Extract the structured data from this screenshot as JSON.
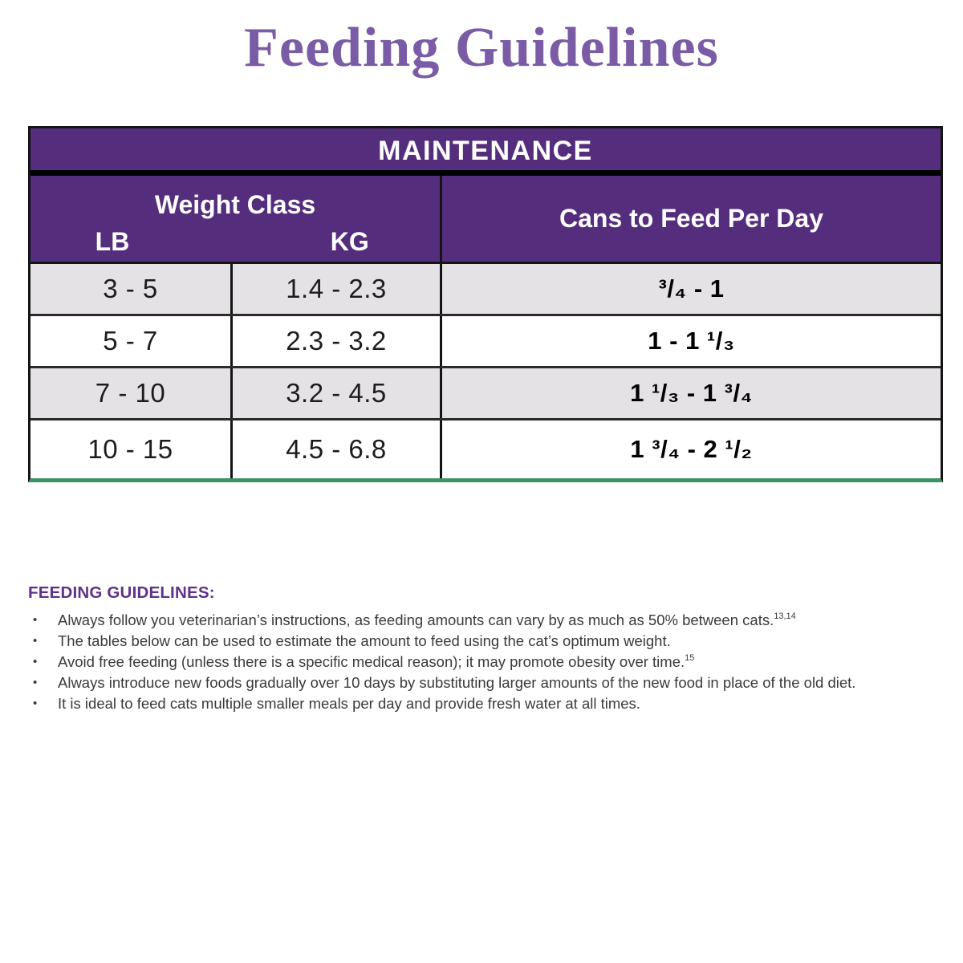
{
  "title": "Feeding Guidelines",
  "table": {
    "header": "MAINTENANCE",
    "weight_class_label": "Weight Class",
    "lb_label": "LB",
    "kg_label": "KG",
    "cans_label": "Cans to Feed Per Day",
    "rows": [
      {
        "lb": "3 - 5",
        "kg": "1.4 - 2.3",
        "cans": "³/₄ - 1"
      },
      {
        "lb": "5 - 7",
        "kg": "2.3 - 3.2",
        "cans": "1 - 1 ¹/₃"
      },
      {
        "lb": "7 - 10",
        "kg": "3.2 - 4.5",
        "cans": "1 ¹/₃ - 1 ³/₄"
      },
      {
        "lb": "10 - 15",
        "kg": "4.5 - 6.8",
        "cans": "1 ³/₄ - 2 ¹/₂"
      }
    ]
  },
  "guidelines": {
    "heading": "FEEDING GUIDELINES:",
    "bullet_char": "•",
    "bullets": [
      {
        "text": "Always follow you veterinarian’s instructions, as feeding amounts can vary by as much as 50% between cats.",
        "sup": "13,14"
      },
      {
        "text": "The tables below can be used to estimate the amount to feed using the cat’s optimum weight.",
        "sup": ""
      },
      {
        "text": "Avoid free feeding (unless there is a specific medical reason); it may promote obesity over time.",
        "sup": "15"
      },
      {
        "text": "Always introduce new foods gradually over 10 days by substituting larger amounts of the new food in place of the old diet.",
        "sup": ""
      },
      {
        "text": "It is ideal to feed cats multiple smaller meals per day and provide fresh water at all times.",
        "sup": ""
      }
    ]
  },
  "colors": {
    "title_purple": "#7a5ba5",
    "table_header_purple": "#552d7d",
    "heading_purple": "#5f3289",
    "row_gray": "#e5e2e5",
    "bottom_border_green": "#3d9366",
    "border_black": "#141414",
    "body_text": "#3a3a3a"
  }
}
